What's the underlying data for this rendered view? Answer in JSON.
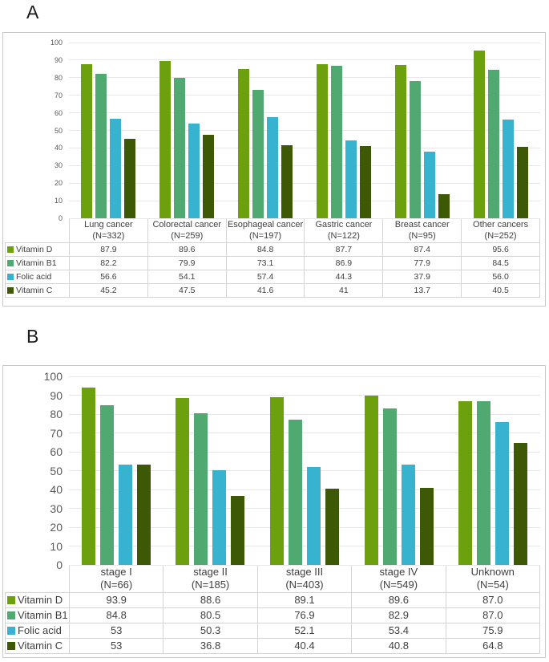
{
  "panels": [
    {
      "label": "A"
    },
    {
      "label": "B"
    }
  ],
  "colors": {
    "vitamin_d": "#6CA10D",
    "vitamin_b1": "#4FA971",
    "folic_acid": "#38B3CF",
    "vitamin_c": "#3D5906",
    "gridline": "#e7e7e7",
    "axis_text": "#595959",
    "table_border": "#d4d4d4"
  },
  "chart_data": [
    {
      "type": "bar",
      "title": "",
      "xlabel": "",
      "ylabel": "",
      "ylim": [
        0,
        100
      ],
      "ytick_step": 10,
      "grid": true,
      "legend_position": "table-left",
      "categories": [
        "Lung cancer",
        "Colorectal cancer",
        "Esophageal cancer",
        "Gastric cancer",
        "Breast cancer",
        "Other cancers"
      ],
      "category_counts": [
        "(N=332)",
        "(N=259)",
        "(N=197)",
        "(N=122)",
        "(N=95)",
        "(N=252)"
      ],
      "series": [
        {
          "name": "Vitamin D",
          "color": "#6CA10D",
          "values": [
            "87.9",
            "89.6",
            "84.8",
            "87.7",
            "87.4",
            "95.6"
          ]
        },
        {
          "name": "Vitamin B1",
          "color": "#4FA971",
          "values": [
            "82.2",
            "79.9",
            "73.1",
            "86.9",
            "77.9",
            "84.5"
          ]
        },
        {
          "name": "Folic acid",
          "color": "#38B3CF",
          "values": [
            "56.6",
            "54.1",
            "57.4",
            "44.3",
            "37.9",
            "56.0"
          ]
        },
        {
          "name": "Vitamin C",
          "color": "#3D5906",
          "values": [
            "45.2",
            "47.5",
            "41.6",
            "41",
            "13.7",
            "40.5"
          ]
        }
      ]
    },
    {
      "type": "bar",
      "title": "",
      "xlabel": "",
      "ylabel": "",
      "ylim": [
        0,
        100
      ],
      "ytick_step": 10,
      "grid": true,
      "legend_position": "table-left",
      "categories": [
        "stage I",
        "stage II",
        "stage III",
        "stage IV",
        "Unknown"
      ],
      "category_counts": [
        "(N=66)",
        "(N=185)",
        "(N=403)",
        "(N=549)",
        "(N=54)"
      ],
      "series": [
        {
          "name": "Vitamin D",
          "color": "#6CA10D",
          "values": [
            "93.9",
            "88.6",
            "89.1",
            "89.6",
            "87.0"
          ]
        },
        {
          "name": "Vitamin B1",
          "color": "#4FA971",
          "values": [
            "84.8",
            "80.5",
            "76.9",
            "82.9",
            "87.0"
          ]
        },
        {
          "name": "Folic acid",
          "color": "#38B3CF",
          "values": [
            "53",
            "50.3",
            "52.1",
            "53.4",
            "75.9"
          ]
        },
        {
          "name": "Vitamin C",
          "color": "#3D5906",
          "values": [
            "53",
            "36.8",
            "40.4",
            "40.8",
            "64.8"
          ]
        }
      ]
    }
  ]
}
